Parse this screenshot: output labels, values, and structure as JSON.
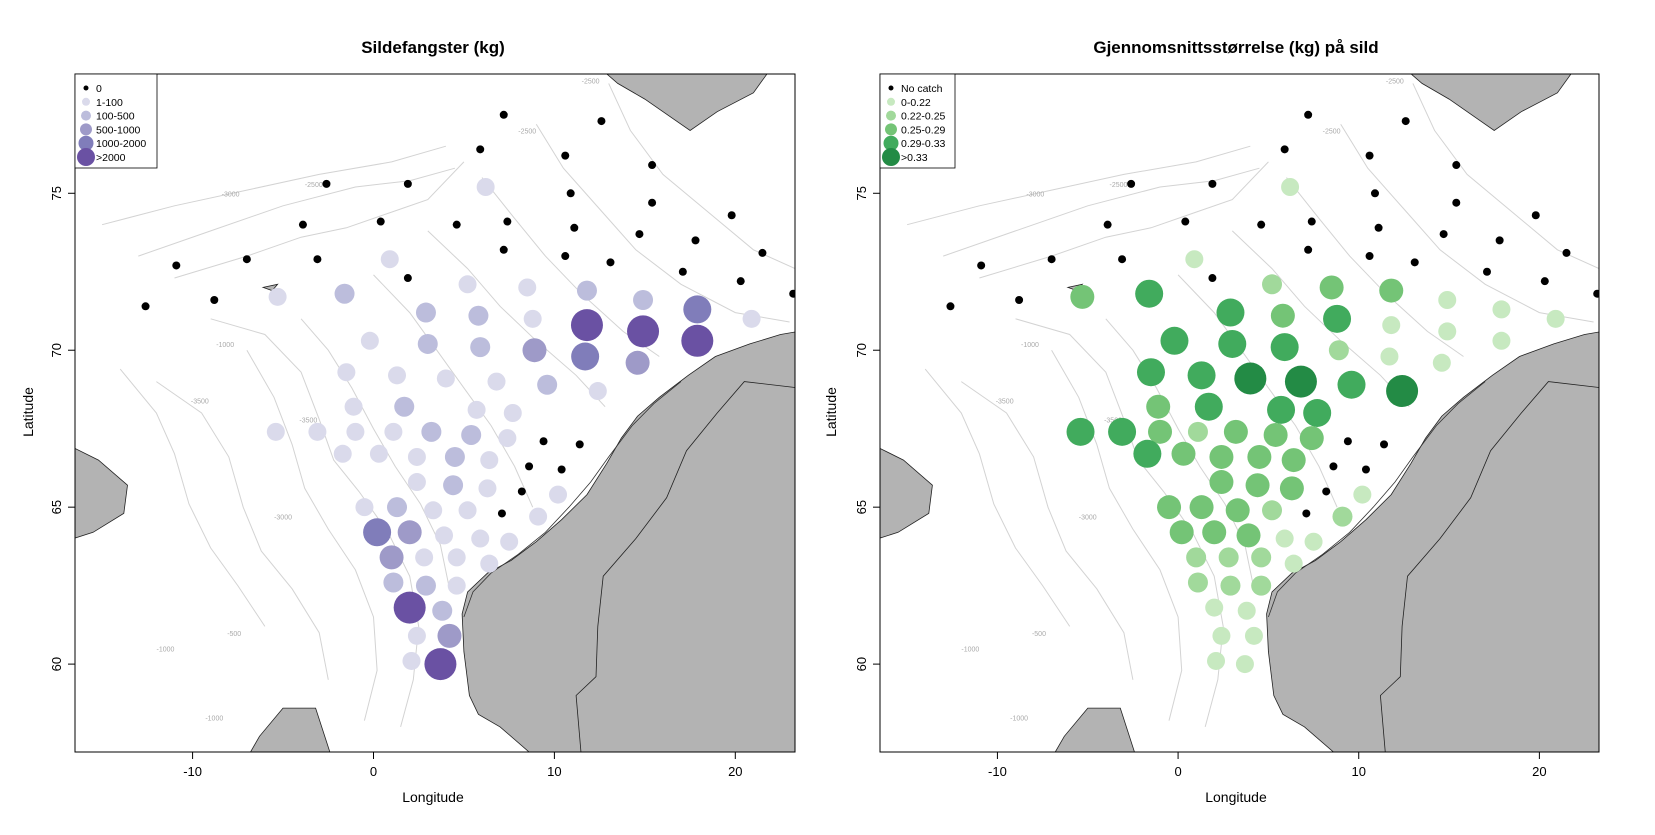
{
  "maps": [
    {
      "title": "Sildefangster (kg)",
      "xlabel": "Longitude",
      "ylabel": "Latitude",
      "x_ticks": [
        -10,
        0,
        10,
        20
      ],
      "y_ticks": [
        60,
        65,
        70,
        75
      ],
      "xlim": [
        -16.5,
        23.3
      ],
      "ylim": [
        57.2,
        78.8
      ],
      "legend": [
        {
          "label": "0",
          "color": "#000000",
          "size": 0
        },
        {
          "label": "1-100",
          "color": "#dadaeb",
          "size": 1
        },
        {
          "label": "100-500",
          "color": "#bcbddc",
          "size": 2
        },
        {
          "label": "500-1000",
          "color": "#9e9ac8",
          "size": 3
        },
        {
          "label": "1000-2000",
          "color": "#807dba",
          "size": 4
        },
        {
          "label": ">2000",
          "color": "#6a51a3",
          "size": 5
        }
      ]
    },
    {
      "title": "Gjennomsnittsstørrelse (kg) på sild",
      "xlabel": "Longitude",
      "ylabel": "Latitude",
      "x_ticks": [
        -10,
        0,
        10,
        20
      ],
      "y_ticks": [
        60,
        65,
        70,
        75
      ],
      "xlim": [
        -16.5,
        23.3
      ],
      "ylim": [
        57.2,
        78.8
      ],
      "legend": [
        {
          "label": "No catch",
          "color": "#000000",
          "size": 0
        },
        {
          "label": "0-0.22",
          "color": "#c7e9c0",
          "size": 1
        },
        {
          "label": "0.22-0.25",
          "color": "#a1d99b",
          "size": 2
        },
        {
          "label": "0.25-0.29",
          "color": "#74c476",
          "size": 3
        },
        {
          "label": "0.29-0.33",
          "color": "#41ab5d",
          "size": 4
        },
        {
          "label": ">0.33",
          "color": "#238b45",
          "size": 5
        }
      ]
    }
  ],
  "stations_nocatch": [
    [
      -12.6,
      71.4
    ],
    [
      -10.9,
      72.7
    ],
    [
      -8.8,
      71.6
    ],
    [
      -7,
      72.9
    ],
    [
      -3.9,
      74
    ],
    [
      -3.1,
      72.9
    ],
    [
      -2.6,
      75.3
    ],
    [
      0.4,
      74.1
    ],
    [
      1.9,
      75.3
    ],
    [
      1.9,
      72.3
    ],
    [
      4.6,
      74
    ],
    [
      5.9,
      76.4
    ],
    [
      7.2,
      77.5
    ],
    [
      7.2,
      73.2
    ],
    [
      7.4,
      74.1
    ],
    [
      10.6,
      76.2
    ],
    [
      10.9,
      75
    ],
    [
      11.1,
      73.9
    ],
    [
      10.6,
      73
    ],
    [
      12.6,
      77.3
    ],
    [
      13.1,
      72.8
    ],
    [
      14.7,
      73.7
    ],
    [
      15.4,
      74.7
    ],
    [
      15.4,
      75.9
    ],
    [
      17.1,
      72.5
    ],
    [
      17.8,
      73.5
    ],
    [
      19.8,
      74.3
    ],
    [
      20.3,
      72.2
    ],
    [
      21.5,
      73.1
    ],
    [
      23.2,
      71.8
    ],
    [
      9.4,
      67.1
    ],
    [
      11.4,
      67
    ],
    [
      8.6,
      66.3
    ],
    [
      10.4,
      66.2
    ],
    [
      8.2,
      65.5
    ],
    [
      7.1,
      64.8
    ]
  ],
  "stations_catch": [
    {
      "lon": -5.3,
      "lat": 71.7,
      "c": 1,
      "s": 3
    },
    {
      "lon": -1.6,
      "lat": 71.8,
      "c": 2,
      "s": 4
    },
    {
      "lon": 0.9,
      "lat": 72.9,
      "c": 1,
      "s": 1
    },
    {
      "lon": 6.2,
      "lat": 75.2,
      "c": 1,
      "s": 1
    },
    {
      "lon": -0.2,
      "lat": 70.3,
      "c": 1,
      "s": 4
    },
    {
      "lon": 2.9,
      "lat": 71.2,
      "c": 2,
      "s": 4
    },
    {
      "lon": 3.0,
      "lat": 70.2,
      "c": 2,
      "s": 4
    },
    {
      "lon": 5.2,
      "lat": 72.1,
      "c": 1,
      "s": 2
    },
    {
      "lon": 5.8,
      "lat": 71.1,
      "c": 2,
      "s": 3
    },
    {
      "lon": 5.9,
      "lat": 70.1,
      "c": 2,
      "s": 4
    },
    {
      "lon": 8.5,
      "lat": 72.0,
      "c": 1,
      "s": 3
    },
    {
      "lon": 8.8,
      "lat": 71.0,
      "c": 1,
      "s": 4
    },
    {
      "lon": 8.9,
      "lat": 70.0,
      "c": 3,
      "s": 2
    },
    {
      "lon": 11.8,
      "lat": 71.9,
      "c": 2,
      "s": 3
    },
    {
      "lon": 11.8,
      "lat": 70.8,
      "c": 5,
      "s": 1
    },
    {
      "lon": 11.7,
      "lat": 69.8,
      "c": 4,
      "s": 1
    },
    {
      "lon": 14.9,
      "lat": 71.6,
      "c": 2,
      "s": 1
    },
    {
      "lon": 14.9,
      "lat": 70.6,
      "c": 5,
      "s": 1
    },
    {
      "lon": 14.6,
      "lat": 69.6,
      "c": 3,
      "s": 1
    },
    {
      "lon": 17.9,
      "lat": 71.3,
      "c": 4,
      "s": 1
    },
    {
      "lon": 17.9,
      "lat": 70.3,
      "c": 5,
      "s": 1
    },
    {
      "lon": 20.9,
      "lat": 71.0,
      "c": 1,
      "s": 1
    },
    {
      "lon": -1.5,
      "lat": 69.3,
      "c": 1,
      "s": 4
    },
    {
      "lon": 1.3,
      "lat": 69.2,
      "c": 1,
      "s": 4
    },
    {
      "lon": 4.0,
      "lat": 69.1,
      "c": 1,
      "s": 5
    },
    {
      "lon": 6.8,
      "lat": 69.0,
      "c": 1,
      "s": 5
    },
    {
      "lon": 9.6,
      "lat": 68.9,
      "c": 2,
      "s": 4
    },
    {
      "lon": 12.4,
      "lat": 68.7,
      "c": 1,
      "s": 5
    },
    {
      "lon": -1.1,
      "lat": 68.2,
      "c": 1,
      "s": 3
    },
    {
      "lon": 1.7,
      "lat": 68.2,
      "c": 2,
      "s": 4
    },
    {
      "lon": 5.7,
      "lat": 68.1,
      "c": 1,
      "s": 4
    },
    {
      "lon": 7.7,
      "lat": 68.0,
      "c": 1,
      "s": 4
    },
    {
      "lon": -5.4,
      "lat": 67.4,
      "c": 1,
      "s": 4
    },
    {
      "lon": -3.1,
      "lat": 67.4,
      "c": 1,
      "s": 4
    },
    {
      "lon": -1.0,
      "lat": 67.4,
      "c": 1,
      "s": 3
    },
    {
      "lon": 1.1,
      "lat": 67.4,
      "c": 1,
      "s": 2
    },
    {
      "lon": 3.2,
      "lat": 67.4,
      "c": 2,
      "s": 3
    },
    {
      "lon": 5.4,
      "lat": 67.3,
      "c": 2,
      "s": 3
    },
    {
      "lon": 7.4,
      "lat": 67.2,
      "c": 1,
      "s": 3
    },
    {
      "lon": -1.7,
      "lat": 66.7,
      "c": 1,
      "s": 4
    },
    {
      "lon": 0.3,
      "lat": 66.7,
      "c": 1,
      "s": 3
    },
    {
      "lon": 2.4,
      "lat": 66.6,
      "c": 1,
      "s": 3
    },
    {
      "lon": 4.5,
      "lat": 66.6,
      "c": 2,
      "s": 3
    },
    {
      "lon": 6.4,
      "lat": 66.5,
      "c": 1,
      "s": 3
    },
    {
      "lon": 2.4,
      "lat": 65.8,
      "c": 1,
      "s": 3
    },
    {
      "lon": 4.4,
      "lat": 65.7,
      "c": 2,
      "s": 3
    },
    {
      "lon": 6.3,
      "lat": 65.6,
      "c": 1,
      "s": 3
    },
    {
      "lon": 10.2,
      "lat": 65.4,
      "c": 1,
      "s": 1
    },
    {
      "lon": -0.5,
      "lat": 65.0,
      "c": 1,
      "s": 3
    },
    {
      "lon": 1.3,
      "lat": 65.0,
      "c": 2,
      "s": 3
    },
    {
      "lon": 3.3,
      "lat": 64.9,
      "c": 1,
      "s": 3
    },
    {
      "lon": 5.2,
      "lat": 64.9,
      "c": 1,
      "s": 2
    },
    {
      "lon": 9.1,
      "lat": 64.7,
      "c": 1,
      "s": 2
    },
    {
      "lon": 0.2,
      "lat": 64.2,
      "c": 4,
      "s": 3
    },
    {
      "lon": 2.0,
      "lat": 64.2,
      "c": 3,
      "s": 3
    },
    {
      "lon": 3.9,
      "lat": 64.1,
      "c": 1,
      "s": 3
    },
    {
      "lon": 5.9,
      "lat": 64.0,
      "c": 1,
      "s": 1
    },
    {
      "lon": 7.5,
      "lat": 63.9,
      "c": 1,
      "s": 1
    },
    {
      "lon": 1.0,
      "lat": 63.4,
      "c": 3,
      "s": 2
    },
    {
      "lon": 2.8,
      "lat": 63.4,
      "c": 1,
      "s": 2
    },
    {
      "lon": 4.6,
      "lat": 63.4,
      "c": 1,
      "s": 2
    },
    {
      "lon": 6.4,
      "lat": 63.2,
      "c": 1,
      "s": 1
    },
    {
      "lon": 1.1,
      "lat": 62.6,
      "c": 2,
      "s": 2
    },
    {
      "lon": 2.9,
      "lat": 62.5,
      "c": 2,
      "s": 2
    },
    {
      "lon": 4.6,
      "lat": 62.5,
      "c": 1,
      "s": 2
    },
    {
      "lon": 2.0,
      "lat": 61.8,
      "c": 5,
      "s": 1
    },
    {
      "lon": 3.8,
      "lat": 61.7,
      "c": 2,
      "s": 1
    },
    {
      "lon": 2.4,
      "lat": 60.9,
      "c": 1,
      "s": 1
    },
    {
      "lon": 4.2,
      "lat": 60.9,
      "c": 3,
      "s": 1
    },
    {
      "lon": 2.1,
      "lat": 60.1,
      "c": 1,
      "s": 1
    },
    {
      "lon": 3.7,
      "lat": 60.0,
      "c": 5,
      "s": 1
    }
  ]
}
